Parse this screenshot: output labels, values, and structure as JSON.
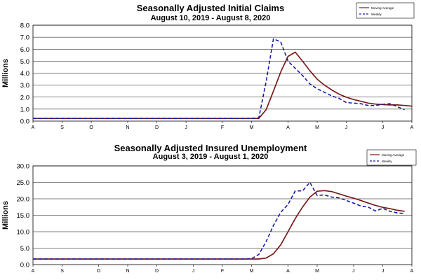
{
  "chart_data": [
    {
      "type": "line",
      "title": "Seasonally Adjusted Initial Claims",
      "subtitle": "August 10, 2019 - August 8, 2020",
      "ylabel": "Millions",
      "ylim": [
        0,
        8
      ],
      "yticks": [
        "0.0",
        "1.0",
        "2.0",
        "3.0",
        "4.0",
        "5.0",
        "6.0",
        "7.0",
        "8.0"
      ],
      "xlim": [
        0,
        52
      ],
      "x_tick_labels": [
        {
          "label": "A",
          "x": 0
        },
        {
          "label": "S",
          "x": 4
        },
        {
          "label": "O",
          "x": 8
        },
        {
          "label": "N",
          "x": 13
        },
        {
          "label": "D",
          "x": 17
        },
        {
          "label": "J",
          "x": 21
        },
        {
          "label": "F",
          "x": 26
        },
        {
          "label": "M",
          "x": 30
        },
        {
          "label": "A",
          "x": 35
        },
        {
          "label": "M",
          "x": 39
        },
        {
          "label": "J",
          "x": 43
        },
        {
          "label": "J",
          "x": 48
        },
        {
          "label": "A",
          "x": 52
        }
      ],
      "grid": true,
      "legend_position": "top-right",
      "series": [
        {
          "name": "Moving Average",
          "color": "#7a1b1b",
          "style": "solid",
          "points": [
            [
              0,
              0.22
            ],
            [
              5,
              0.22
            ],
            [
              10,
              0.22
            ],
            [
              15,
              0.22
            ],
            [
              20,
              0.22
            ],
            [
              25,
              0.22
            ],
            [
              30,
              0.22
            ],
            [
              31,
              0.23
            ],
            [
              32,
              0.95
            ],
            [
              33,
              2.5
            ],
            [
              34,
              4.1
            ],
            [
              35,
              5.4
            ],
            [
              36,
              5.75
            ],
            [
              37,
              5.0
            ],
            [
              38,
              4.2
            ],
            [
              39,
              3.5
            ],
            [
              40,
              3.0
            ],
            [
              41,
              2.6
            ],
            [
              42,
              2.25
            ],
            [
              43,
              2.0
            ],
            [
              44,
              1.8
            ],
            [
              45,
              1.65
            ],
            [
              46,
              1.5
            ],
            [
              47,
              1.42
            ],
            [
              48,
              1.38
            ],
            [
              49,
              1.35
            ],
            [
              50,
              1.35
            ],
            [
              51,
              1.3
            ],
            [
              52,
              1.25
            ]
          ]
        },
        {
          "name": "Weekly",
          "color": "#1a1aa6",
          "style": "dashed",
          "points": [
            [
              0,
              0.22
            ],
            [
              5,
              0.22
            ],
            [
              10,
              0.22
            ],
            [
              15,
              0.22
            ],
            [
              20,
              0.22
            ],
            [
              25,
              0.22
            ],
            [
              30,
              0.22
            ],
            [
              31,
              0.28
            ],
            [
              32,
              3.3
            ],
            [
              33,
              6.87
            ],
            [
              34,
              6.6
            ],
            [
              35,
              5.0
            ],
            [
              36,
              4.4
            ],
            [
              37,
              3.8
            ],
            [
              38,
              3.1
            ],
            [
              39,
              2.7
            ],
            [
              40,
              2.4
            ],
            [
              41,
              2.1
            ],
            [
              42,
              1.9
            ],
            [
              43,
              1.55
            ],
            [
              44,
              1.5
            ],
            [
              45,
              1.45
            ],
            [
              46,
              1.3
            ],
            [
              47,
              1.3
            ],
            [
              48,
              1.4
            ],
            [
              49,
              1.45
            ],
            [
              50,
              1.2
            ],
            [
              51,
              0.95
            ]
          ]
        }
      ]
    },
    {
      "type": "line",
      "title": "Seasonally Adjusted Insured Unemployment",
      "subtitle": "August 3, 2019 - August 1, 2020",
      "ylabel": "Millions",
      "ylim": [
        0,
        30
      ],
      "yticks": [
        "0.0",
        "5.0",
        "10.0",
        "15.0",
        "20.0",
        "25.0",
        "30.0"
      ],
      "xlim": [
        0,
        52
      ],
      "x_tick_labels": [
        {
          "label": "A",
          "x": 0
        },
        {
          "label": "S",
          "x": 4
        },
        {
          "label": "O",
          "x": 9
        },
        {
          "label": "N",
          "x": 13
        },
        {
          "label": "D",
          "x": 17
        },
        {
          "label": "J",
          "x": 22
        },
        {
          "label": "F",
          "x": 26
        },
        {
          "label": "M",
          "x": 30
        },
        {
          "label": "A",
          "x": 35
        },
        {
          "label": "M",
          "x": 39
        },
        {
          "label": "J",
          "x": 44
        },
        {
          "label": "J",
          "x": 48
        },
        {
          "label": "A",
          "x": 52
        }
      ],
      "grid": true,
      "legend_position": "top-right",
      "series": [
        {
          "name": "Moving Average",
          "color": "#7a1b1b",
          "style": "solid",
          "points": [
            [
              0,
              1.7
            ],
            [
              5,
              1.7
            ],
            [
              10,
              1.7
            ],
            [
              15,
              1.7
            ],
            [
              20,
              1.7
            ],
            [
              25,
              1.7
            ],
            [
              29,
              1.7
            ],
            [
              31,
              1.7
            ],
            [
              32,
              2.0
            ],
            [
              33,
              3.3
            ],
            [
              34,
              6.0
            ],
            [
              35,
              10.0
            ],
            [
              36,
              14.0
            ],
            [
              37,
              17.5
            ],
            [
              38,
              20.5
            ],
            [
              39,
              22.3
            ],
            [
              40,
              22.5
            ],
            [
              41,
              22.2
            ],
            [
              42,
              21.5
            ],
            [
              43,
              20.8
            ],
            [
              44,
              20.2
            ],
            [
              45,
              19.5
            ],
            [
              46,
              18.7
            ],
            [
              47,
              18.0
            ],
            [
              48,
              17.4
            ],
            [
              49,
              17.0
            ],
            [
              50,
              16.5
            ],
            [
              51,
              16.2
            ]
          ]
        },
        {
          "name": "Weekly",
          "color": "#1a1aa6",
          "style": "dashed",
          "points": [
            [
              0,
              1.7
            ],
            [
              5,
              1.7
            ],
            [
              10,
              1.7
            ],
            [
              15,
              1.7
            ],
            [
              20,
              1.7
            ],
            [
              25,
              1.7
            ],
            [
              29,
              1.7
            ],
            [
              30,
              1.8
            ],
            [
              31,
              3.1
            ],
            [
              32,
              7.0
            ],
            [
              33,
              11.9
            ],
            [
              34,
              15.9
            ],
            [
              35,
              18.3
            ],
            [
              36,
              22.4
            ],
            [
              37,
              22.4
            ],
            [
              38,
              25.0
            ],
            [
              39,
              21.0
            ],
            [
              40,
              21.2
            ],
            [
              41,
              20.5
            ],
            [
              42,
              20.3
            ],
            [
              43,
              19.5
            ],
            [
              44,
              18.7
            ],
            [
              45,
              17.8
            ],
            [
              46,
              17.5
            ],
            [
              47,
              16.3
            ],
            [
              48,
              17.1
            ],
            [
              49,
              16.2
            ],
            [
              50,
              15.7
            ],
            [
              51,
              15.5
            ]
          ]
        }
      ]
    }
  ]
}
